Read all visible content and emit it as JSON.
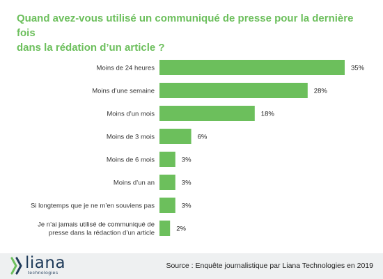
{
  "title": "Quand avez-vous utilisé un communiqué de presse pour la dernière fois\ndans la rédation d’un article ?",
  "colors": {
    "title": "#6cbf5c",
    "bar": "#6cbf5c",
    "footer_bg": "#eef0f1",
    "logo": "#1f3b5a",
    "logo_accent": "#6cbf5c"
  },
  "chart_data": {
    "type": "bar",
    "orientation": "horizontal",
    "categories": [
      "Moins de 24 heures",
      "Moins d’une semaine",
      "Moins d’un mois",
      "Moins de 3 mois",
      "Moins de 6 mois",
      "Moins d’un an",
      "Si longtemps que je ne m’en souviens pas",
      "Je n’ai jamais utilisé de communiqué de\npresse dans la rédaction d’un article"
    ],
    "values": [
      35,
      28,
      18,
      6,
      3,
      3,
      3,
      2
    ],
    "value_labels": [
      "35%",
      "28%",
      "18%",
      "6%",
      "3%",
      "3%",
      "3%",
      "2%"
    ],
    "unit": "%",
    "xlim": [
      0,
      35
    ],
    "grid": false,
    "legend": "none",
    "axes_visible": false
  },
  "footer": {
    "logo_text": "liana",
    "logo_subtext": "technologies",
    "logo_icon": "liana-chevron-icon",
    "source": "Source : Enquête journalistique par Liana Technologies en 2019"
  }
}
